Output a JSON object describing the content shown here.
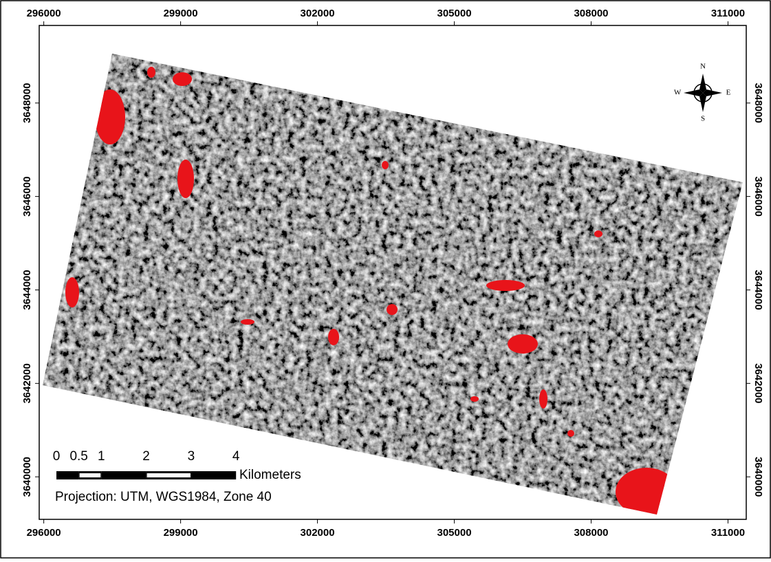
{
  "map": {
    "x_ticks": [
      296000,
      299000,
      302000,
      305000,
      308000,
      311000
    ],
    "y_ticks": [
      3640000,
      3642000,
      3644000,
      3646000,
      3648000
    ],
    "xlim": [
      295900,
      311400
    ],
    "ylim": [
      3639090,
      3649660
    ],
    "compass": {
      "north": "N",
      "south": "S",
      "east": "E",
      "west": "W"
    },
    "scale_bar": {
      "ticks": [
        0,
        0.5,
        1,
        2,
        3,
        4
      ],
      "unit": "Kilometers"
    },
    "projection": "Projection: UTM, WGS1984, Zone 40"
  }
}
